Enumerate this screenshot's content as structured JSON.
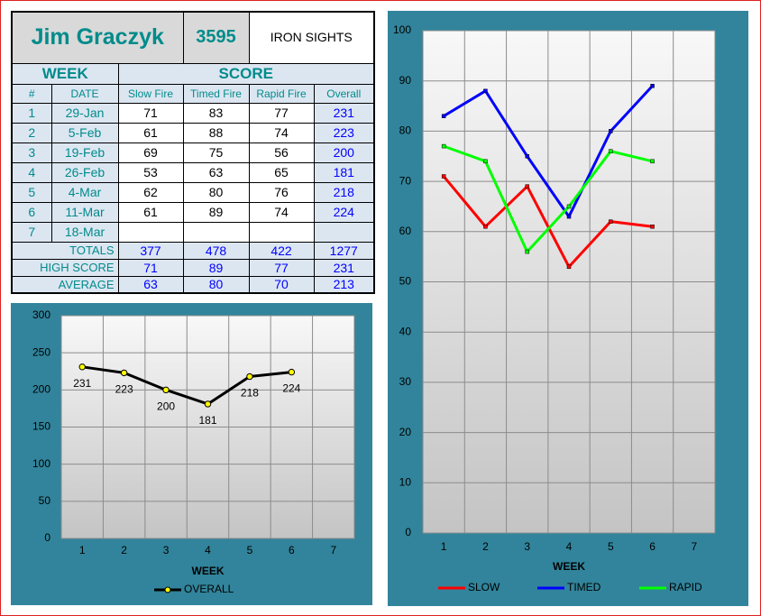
{
  "header": {
    "name": "Jim Graczyk",
    "number": "3595",
    "label": "IRON SIGHTS"
  },
  "table": {
    "group_headers": [
      "WEEK",
      "SCORE"
    ],
    "columns": [
      "#",
      "DATE",
      "Slow Fire",
      "Timed Fire",
      "Rapid Fire",
      "Overall"
    ],
    "rows": [
      [
        "1",
        "29-Jan",
        "71",
        "83",
        "77",
        "231"
      ],
      [
        "2",
        "5-Feb",
        "61",
        "88",
        "74",
        "223"
      ],
      [
        "3",
        "19-Feb",
        "69",
        "75",
        "56",
        "200"
      ],
      [
        "4",
        "26-Feb",
        "53",
        "63",
        "65",
        "181"
      ],
      [
        "5",
        "4-Mar",
        "62",
        "80",
        "76",
        "218"
      ],
      [
        "6",
        "11-Mar",
        "61",
        "89",
        "74",
        "224"
      ],
      [
        "7",
        "18-Mar"
      ]
    ],
    "summary": [
      [
        "TOTALS",
        "377",
        "478",
        "422",
        "1277"
      ],
      [
        "HIGH SCORE",
        "71",
        "89",
        "77",
        "231"
      ],
      [
        "AVERAGE",
        "63",
        "80",
        "70",
        "213"
      ]
    ]
  },
  "chart_data": [
    {
      "type": "line",
      "xlabel": "WEEK",
      "categories": [
        "1",
        "2",
        "3",
        "4",
        "5",
        "6",
        "7"
      ],
      "series": [
        {
          "name": "OVERALL",
          "color": "#000000",
          "marker_color": "#ffff00",
          "values": [
            231,
            223,
            200,
            181,
            218,
            224,
            null
          ]
        }
      ],
      "ylim": [
        0,
        300
      ],
      "yticks": [
        0,
        50,
        100,
        150,
        200,
        250,
        300
      ],
      "grid": true,
      "data_labels": true,
      "legend": "bottom"
    },
    {
      "type": "line",
      "xlabel": "WEEK",
      "categories": [
        "1",
        "2",
        "3",
        "4",
        "5",
        "6",
        "7"
      ],
      "series": [
        {
          "name": "SLOW",
          "color": "#ff0000",
          "values": [
            71,
            61,
            69,
            53,
            62,
            61,
            null
          ]
        },
        {
          "name": "TIMED",
          "color": "#0000ff",
          "values": [
            83,
            88,
            75,
            63,
            80,
            89,
            null
          ]
        },
        {
          "name": "RAPID",
          "color": "#00ff00",
          "values": [
            77,
            74,
            56,
            65,
            76,
            74,
            null
          ]
        }
      ],
      "ylim": [
        0,
        100
      ],
      "yticks": [
        0,
        10,
        20,
        30,
        40,
        50,
        60,
        70,
        80,
        90,
        100
      ],
      "grid": true,
      "data_labels": false,
      "legend": "bottom"
    }
  ]
}
